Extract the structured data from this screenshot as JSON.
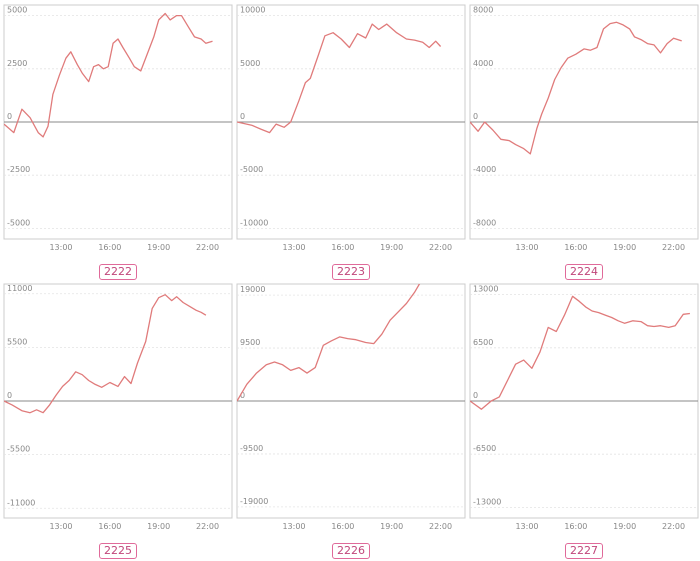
{
  "chart_data": [
    {
      "type": "line",
      "name_label": "2222",
      "ylim": [
        -5500,
        5500
      ],
      "y_ticks": [
        5000,
        2500,
        0,
        -2500,
        -5000
      ],
      "y_tick_labels": [
        "5000",
        "2500",
        "0",
        "-2500",
        "-5000"
      ],
      "x_ticks": [
        13,
        16,
        19,
        22
      ],
      "x_tick_labels": [
        "13:00",
        "16:00",
        "19:00",
        "22:00"
      ],
      "xlim": [
        9.5,
        23.5
      ],
      "line_color": "#e07b7b",
      "x": [
        9.5,
        10.1,
        10.6,
        11.1,
        11.6,
        11.9,
        12.2,
        12.5,
        12.9,
        13.3,
        13.6,
        14.0,
        14.3,
        14.7,
        15.0,
        15.3,
        15.6,
        15.9,
        16.2,
        16.5,
        16.8,
        17.2,
        17.5,
        17.9,
        18.3,
        18.7,
        19.0,
        19.4,
        19.7,
        20.1,
        20.4,
        20.8,
        21.2,
        21.6,
        21.9,
        22.3
      ],
      "y": [
        -100,
        -500,
        600,
        200,
        -500,
        -700,
        -200,
        1300,
        2200,
        3000,
        3300,
        2700,
        2300,
        1900,
        2600,
        2700,
        2500,
        2600,
        3700,
        3900,
        3500,
        3000,
        2600,
        2400,
        3200,
        4000,
        4800,
        5100,
        4800,
        5000,
        5000,
        4500,
        4000,
        3900,
        3700,
        3800
      ]
    },
    {
      "type": "line",
      "name_label": "2223",
      "ylim": [
        -11000,
        11000
      ],
      "y_ticks": [
        10000,
        5000,
        0,
        -5000,
        -10000
      ],
      "y_tick_labels": [
        "10000",
        "5000",
        "0",
        "-5000",
        "-10000"
      ],
      "x_ticks": [
        13,
        16,
        19,
        22
      ],
      "x_tick_labels": [
        "13:00",
        "16:00",
        "19:00",
        "22:00"
      ],
      "xlim": [
        9.5,
        23.5
      ],
      "line_color": "#e07b7b",
      "x": [
        9.5,
        10.4,
        11.0,
        11.5,
        11.9,
        12.4,
        12.8,
        13.3,
        13.7,
        14.0,
        14.5,
        14.9,
        15.4,
        15.9,
        16.4,
        16.9,
        17.4,
        17.8,
        18.2,
        18.7,
        19.3,
        19.9,
        20.4,
        20.9,
        21.3,
        21.7,
        22.0
      ],
      "y": [
        0,
        -300,
        -700,
        -1000,
        -200,
        -500,
        0,
        2000,
        3700,
        4100,
        6300,
        8100,
        8400,
        7800,
        7000,
        8300,
        7900,
        9200,
        8700,
        9200,
        8400,
        7800,
        7700,
        7500,
        7000,
        7600,
        7100
      ]
    },
    {
      "type": "line",
      "name_label": "2224",
      "ylim": [
        -8800,
        8800
      ],
      "y_ticks": [
        8000,
        4000,
        0,
        -4000,
        -8000
      ],
      "y_tick_labels": [
        "8000",
        "4000",
        "0",
        "-4000",
        "-8000"
      ],
      "x_ticks": [
        13,
        16,
        19,
        22
      ],
      "x_tick_labels": [
        "13:00",
        "16:00",
        "19:00",
        "22:00"
      ],
      "xlim": [
        9.5,
        23.5
      ],
      "line_color": "#e07b7b",
      "x": [
        9.5,
        10.0,
        10.4,
        10.9,
        11.4,
        11.9,
        12.3,
        12.8,
        13.2,
        13.6,
        13.9,
        14.3,
        14.7,
        15.1,
        15.5,
        16.0,
        16.5,
        16.9,
        17.3,
        17.7,
        18.1,
        18.5,
        18.9,
        19.3,
        19.6,
        20.0,
        20.4,
        20.8,
        21.2,
        21.6,
        22.0,
        22.5
      ],
      "y": [
        0,
        -700,
        0,
        -600,
        -1300,
        -1400,
        -1700,
        -2000,
        -2400,
        -500,
        600,
        1800,
        3200,
        4100,
        4800,
        5100,
        5500,
        5400,
        5600,
        7000,
        7400,
        7500,
        7300,
        7000,
        6400,
        6200,
        5900,
        5800,
        5200,
        5900,
        6300,
        6100
      ]
    },
    {
      "type": "line",
      "name_label": "2225",
      "ylim": [
        -12000,
        12000
      ],
      "y_ticks": [
        11000,
        5500,
        0,
        -5500,
        -11000
      ],
      "y_tick_labels": [
        "11000",
        "5500",
        "0",
        "-5500",
        "-11000"
      ],
      "x_ticks": [
        13,
        16,
        19,
        22
      ],
      "x_tick_labels": [
        "13:00",
        "16:00",
        "19:00",
        "22:00"
      ],
      "xlim": [
        9.5,
        23.5
      ],
      "line_color": "#e07b7b",
      "x": [
        9.5,
        10.0,
        10.6,
        11.1,
        11.5,
        11.9,
        12.3,
        12.7,
        13.1,
        13.5,
        13.9,
        14.3,
        14.7,
        15.1,
        15.5,
        16.0,
        16.5,
        16.9,
        17.3,
        17.7,
        18.2,
        18.6,
        19.0,
        19.4,
        19.8,
        20.1,
        20.5,
        20.9,
        21.3,
        21.6,
        21.9
      ],
      "y": [
        0,
        -400,
        -1000,
        -1200,
        -900,
        -1200,
        -400,
        600,
        1500,
        2100,
        3000,
        2700,
        2100,
        1700,
        1400,
        1900,
        1500,
        2500,
        1800,
        3900,
        6100,
        9500,
        10600,
        10900,
        10300,
        10700,
        10100,
        9700,
        9300,
        9100,
        8800
      ]
    },
    {
      "type": "line",
      "name_label": "2226",
      "ylim": [
        -21000,
        21000
      ],
      "y_ticks": [
        19000,
        9500,
        0,
        -9500,
        -19000
      ],
      "y_tick_labels": [
        "19000",
        "9500",
        "0",
        "-9500",
        "-19000"
      ],
      "x_ticks": [
        13,
        16,
        19,
        22
      ],
      "x_tick_labels": [
        "13:00",
        "16:00",
        "19:00",
        "22:00"
      ],
      "xlim": [
        9.5,
        23.5
      ],
      "line_color": "#e07b7b",
      "x": [
        9.5,
        10.1,
        10.7,
        11.3,
        11.8,
        12.3,
        12.8,
        13.3,
        13.8,
        14.3,
        14.8,
        15.3,
        15.8,
        16.3,
        16.8,
        17.4,
        17.9,
        18.4,
        18.9,
        19.4,
        19.9,
        20.4,
        20.9,
        21.4,
        21.8
      ],
      "y": [
        0,
        3000,
        5000,
        6500,
        7000,
        6500,
        5500,
        6000,
        5000,
        6000,
        10000,
        10800,
        11500,
        11200,
        11000,
        10500,
        10300,
        12000,
        14500,
        16000,
        17500,
        19500,
        22000,
        24000,
        25000
      ]
    },
    {
      "type": "line",
      "name_label": "2227",
      "ylim": [
        -14300,
        14300
      ],
      "y_ticks": [
        13000,
        6500,
        0,
        -6500,
        -13000
      ],
      "y_tick_labels": [
        "13000",
        "6500",
        "0",
        "-6500",
        "-13000"
      ],
      "x_ticks": [
        13,
        16,
        19,
        22
      ],
      "x_tick_labels": [
        "13:00",
        "16:00",
        "19:00",
        "22:00"
      ],
      "xlim": [
        9.5,
        23.5
      ],
      "line_color": "#e07b7b",
      "x": [
        9.5,
        10.2,
        10.8,
        11.3,
        11.8,
        12.3,
        12.8,
        13.3,
        13.8,
        14.3,
        14.8,
        15.3,
        15.8,
        16.2,
        16.6,
        17.0,
        17.4,
        17.8,
        18.2,
        18.6,
        19.0,
        19.5,
        20.0,
        20.4,
        20.8,
        21.2,
        21.7,
        22.1,
        22.6,
        23.0
      ],
      "y": [
        0,
        -1000,
        0,
        500,
        2500,
        4500,
        5000,
        4000,
        6000,
        9000,
        8500,
        10500,
        12800,
        12200,
        11500,
        11000,
        10800,
        10500,
        10200,
        9800,
        9500,
        9800,
        9700,
        9200,
        9100,
        9200,
        9000,
        9200,
        10600,
        10700
      ]
    }
  ]
}
